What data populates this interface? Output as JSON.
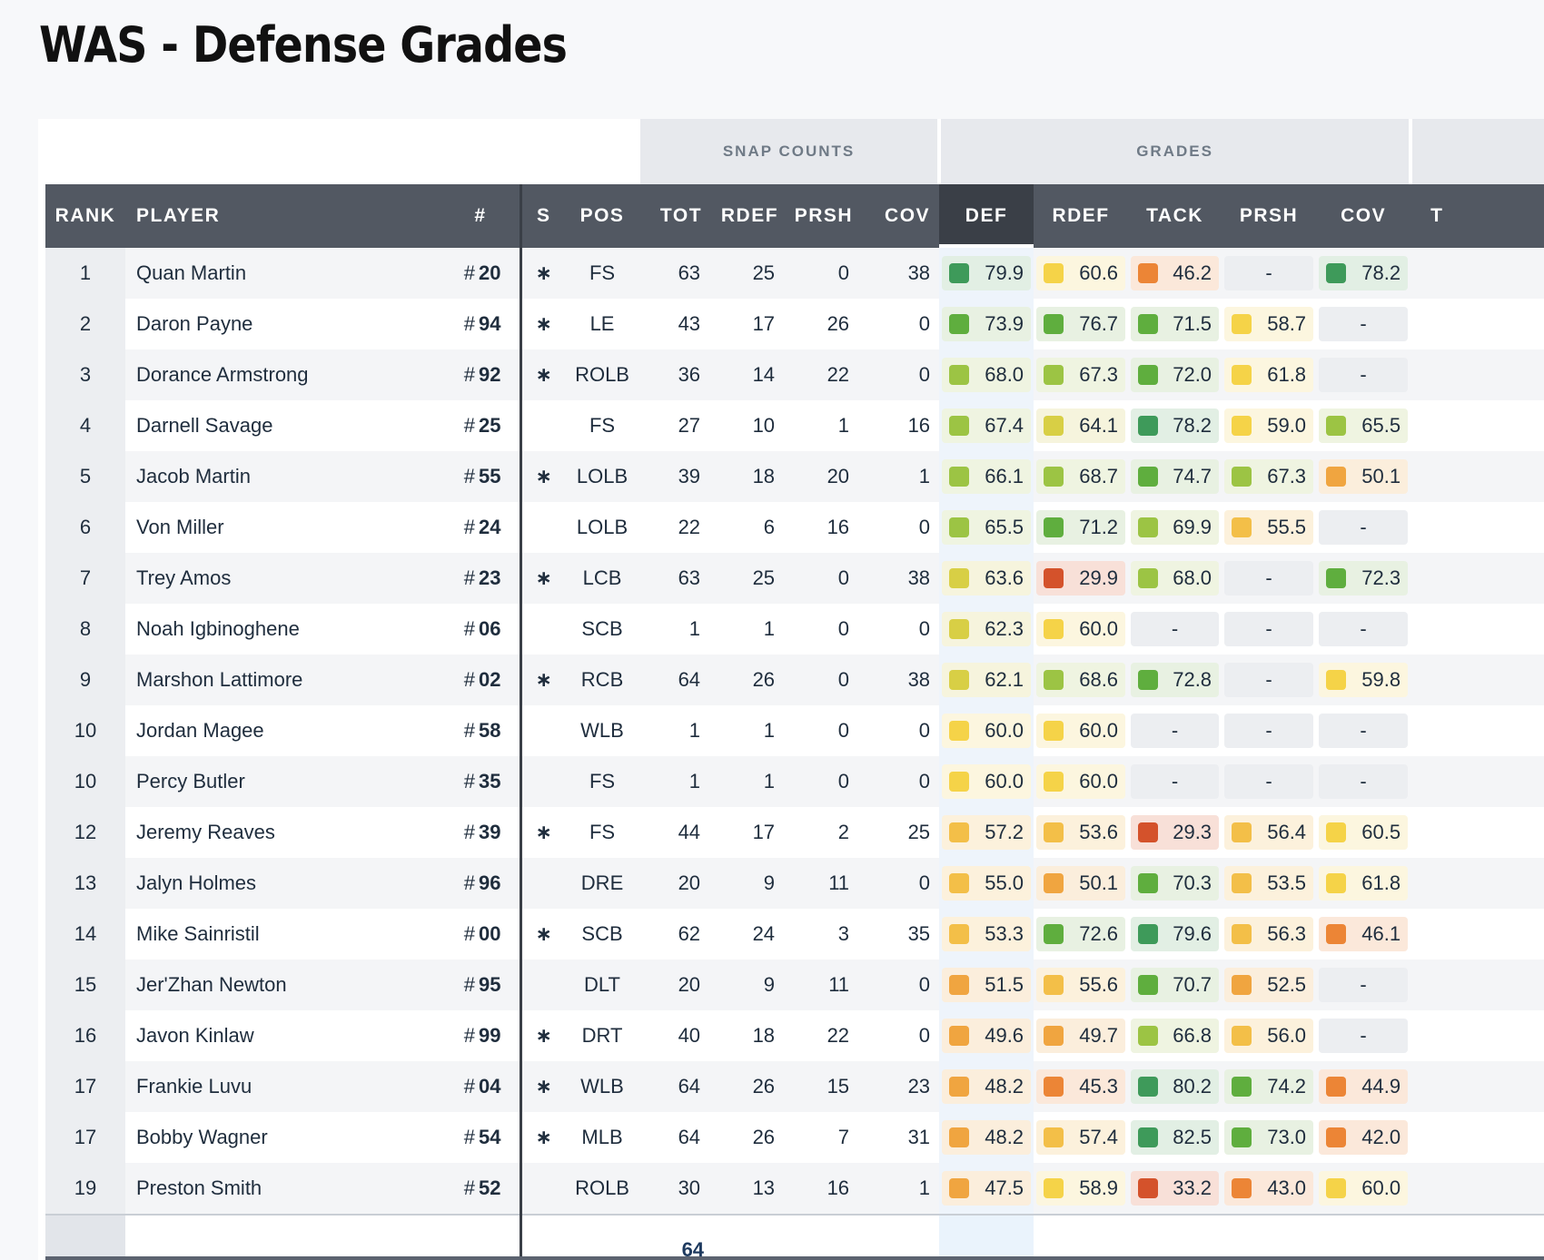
{
  "page": {
    "title": "WAS - Defense Grades"
  },
  "groups": {
    "snap_counts": "SNAP COUNTS",
    "grades": "GRADES"
  },
  "columns": {
    "rank": "RANK",
    "player": "PLAYER",
    "number": "#",
    "starter": "S",
    "pos": "POS",
    "tot": "TOT",
    "snap_rdef": "RDEF",
    "snap_prsh": "PRSH",
    "snap_cov": "COV",
    "def": "DEF",
    "grade_rdef": "RDEF",
    "tack": "TACK",
    "grade_prsh": "PRSH",
    "grade_cov": "COV",
    "extra": "T"
  },
  "rows": [
    {
      "rank": "1",
      "player": "Quan Martin",
      "num": "20",
      "starter": "∗",
      "pos": "FS",
      "tot": "63",
      "rdef": "25",
      "prsh": "0",
      "cov": "38",
      "def": "79.9",
      "g_rdef": "60.6",
      "tack": "46.2",
      "g_prsh": "-",
      "g_cov": "78.2"
    },
    {
      "rank": "2",
      "player": "Daron Payne",
      "num": "94",
      "starter": "∗",
      "pos": "LE",
      "tot": "43",
      "rdef": "17",
      "prsh": "26",
      "cov": "0",
      "def": "73.9",
      "g_rdef": "76.7",
      "tack": "71.5",
      "g_prsh": "58.7",
      "g_cov": "-"
    },
    {
      "rank": "3",
      "player": "Dorance Armstrong",
      "num": "92",
      "starter": "∗",
      "pos": "ROLB",
      "tot": "36",
      "rdef": "14",
      "prsh": "22",
      "cov": "0",
      "def": "68.0",
      "g_rdef": "67.3",
      "tack": "72.0",
      "g_prsh": "61.8",
      "g_cov": "-"
    },
    {
      "rank": "4",
      "player": "Darnell Savage",
      "num": "25",
      "starter": "",
      "pos": "FS",
      "tot": "27",
      "rdef": "10",
      "prsh": "1",
      "cov": "16",
      "def": "67.4",
      "g_rdef": "64.1",
      "tack": "78.2",
      "g_prsh": "59.0",
      "g_cov": "65.5"
    },
    {
      "rank": "5",
      "player": "Jacob Martin",
      "num": "55",
      "starter": "∗",
      "pos": "LOLB",
      "tot": "39",
      "rdef": "18",
      "prsh": "20",
      "cov": "1",
      "def": "66.1",
      "g_rdef": "68.7",
      "tack": "74.7",
      "g_prsh": "67.3",
      "g_cov": "50.1"
    },
    {
      "rank": "6",
      "player": "Von Miller",
      "num": "24",
      "starter": "",
      "pos": "LOLB",
      "tot": "22",
      "rdef": "6",
      "prsh": "16",
      "cov": "0",
      "def": "65.5",
      "g_rdef": "71.2",
      "tack": "69.9",
      "g_prsh": "55.5",
      "g_cov": "-"
    },
    {
      "rank": "7",
      "player": "Trey Amos",
      "num": "23",
      "starter": "∗",
      "pos": "LCB",
      "tot": "63",
      "rdef": "25",
      "prsh": "0",
      "cov": "38",
      "def": "63.6",
      "g_rdef": "29.9",
      "tack": "68.0",
      "g_prsh": "-",
      "g_cov": "72.3"
    },
    {
      "rank": "8",
      "player": "Noah Igbinoghene",
      "num": "06",
      "starter": "",
      "pos": "SCB",
      "tot": "1",
      "rdef": "1",
      "prsh": "0",
      "cov": "0",
      "def": "62.3",
      "g_rdef": "60.0",
      "tack": "-",
      "g_prsh": "-",
      "g_cov": "-"
    },
    {
      "rank": "9",
      "player": "Marshon Lattimore",
      "num": "02",
      "starter": "∗",
      "pos": "RCB",
      "tot": "64",
      "rdef": "26",
      "prsh": "0",
      "cov": "38",
      "def": "62.1",
      "g_rdef": "68.6",
      "tack": "72.8",
      "g_prsh": "-",
      "g_cov": "59.8"
    },
    {
      "rank": "10",
      "player": "Jordan Magee",
      "num": "58",
      "starter": "",
      "pos": "WLB",
      "tot": "1",
      "rdef": "1",
      "prsh": "0",
      "cov": "0",
      "def": "60.0",
      "g_rdef": "60.0",
      "tack": "-",
      "g_prsh": "-",
      "g_cov": "-"
    },
    {
      "rank": "10",
      "player": "Percy Butler",
      "num": "35",
      "starter": "",
      "pos": "FS",
      "tot": "1",
      "rdef": "1",
      "prsh": "0",
      "cov": "0",
      "def": "60.0",
      "g_rdef": "60.0",
      "tack": "-",
      "g_prsh": "-",
      "g_cov": "-"
    },
    {
      "rank": "12",
      "player": "Jeremy Reaves",
      "num": "39",
      "starter": "∗",
      "pos": "FS",
      "tot": "44",
      "rdef": "17",
      "prsh": "2",
      "cov": "25",
      "def": "57.2",
      "g_rdef": "53.6",
      "tack": "29.3",
      "g_prsh": "56.4",
      "g_cov": "60.5"
    },
    {
      "rank": "13",
      "player": "Jalyn Holmes",
      "num": "96",
      "starter": "",
      "pos": "DRE",
      "tot": "20",
      "rdef": "9",
      "prsh": "11",
      "cov": "0",
      "def": "55.0",
      "g_rdef": "50.1",
      "tack": "70.3",
      "g_prsh": "53.5",
      "g_cov": "61.8"
    },
    {
      "rank": "14",
      "player": "Mike Sainristil",
      "num": "00",
      "starter": "∗",
      "pos": "SCB",
      "tot": "62",
      "rdef": "24",
      "prsh": "3",
      "cov": "35",
      "def": "53.3",
      "g_rdef": "72.6",
      "tack": "79.6",
      "g_prsh": "56.3",
      "g_cov": "46.1"
    },
    {
      "rank": "15",
      "player": "Jer'Zhan Newton",
      "num": "95",
      "starter": "",
      "pos": "DLT",
      "tot": "20",
      "rdef": "9",
      "prsh": "11",
      "cov": "0",
      "def": "51.5",
      "g_rdef": "55.6",
      "tack": "70.7",
      "g_prsh": "52.5",
      "g_cov": "-"
    },
    {
      "rank": "16",
      "player": "Javon Kinlaw",
      "num": "99",
      "starter": "∗",
      "pos": "DRT",
      "tot": "40",
      "rdef": "18",
      "prsh": "22",
      "cov": "0",
      "def": "49.6",
      "g_rdef": "49.7",
      "tack": "66.8",
      "g_prsh": "56.0",
      "g_cov": "-"
    },
    {
      "rank": "17",
      "player": "Frankie Luvu",
      "num": "04",
      "starter": "∗",
      "pos": "WLB",
      "tot": "64",
      "rdef": "26",
      "prsh": "15",
      "cov": "23",
      "def": "48.2",
      "g_rdef": "45.3",
      "tack": "80.2",
      "g_prsh": "74.2",
      "g_cov": "44.9"
    },
    {
      "rank": "17",
      "player": "Bobby Wagner",
      "num": "54",
      "starter": "∗",
      "pos": "MLB",
      "tot": "64",
      "rdef": "26",
      "prsh": "7",
      "cov": "31",
      "def": "48.2",
      "g_rdef": "57.4",
      "tack": "82.5",
      "g_prsh": "73.0",
      "g_cov": "42.0"
    },
    {
      "rank": "19",
      "player": "Preston Smith",
      "num": "52",
      "starter": "",
      "pos": "ROLB",
      "tot": "30",
      "rdef": "13",
      "prsh": "16",
      "cov": "1",
      "def": "47.5",
      "g_rdef": "58.9",
      "tack": "33.2",
      "g_prsh": "43.0",
      "g_cov": "60.0"
    }
  ],
  "footer": {
    "total_snaps": "64"
  }
}
